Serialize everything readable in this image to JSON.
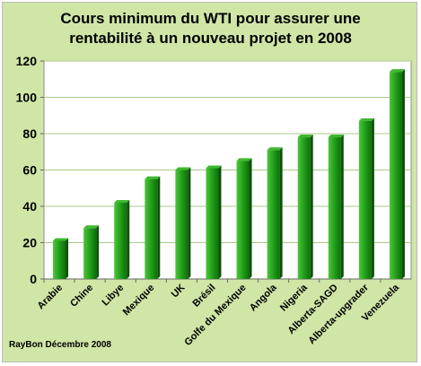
{
  "chart_data": {
    "type": "bar",
    "title_lines": [
      "Cours minimum du WTI pour assurer une",
      "rentabilité à un nouveau projet en 2008"
    ],
    "categories": [
      "Arabie",
      "Chine",
      "Libye",
      "Mexique",
      "UK",
      "Brésil",
      "Golfe du Mexique",
      "Angola",
      "Nigeria",
      "Alberta-SAGD",
      "Alberta-upgrader",
      "Venezuela"
    ],
    "values": [
      21,
      28,
      42,
      55,
      60,
      61,
      65,
      71,
      78,
      78,
      87,
      114
    ],
    "ylim": [
      0,
      120
    ],
    "yticks": [
      0,
      20,
      40,
      60,
      80,
      100,
      120
    ],
    "grid": true,
    "xlabel": "",
    "ylabel": "",
    "colors": {
      "background": "#cfe6a6",
      "plot_area": "#ffffff",
      "bar_light": "#4cc63a",
      "bar_dark": "#0f6e0a",
      "gridline": "#a9c98a"
    }
  },
  "footer": "RayBon Décembre 2008"
}
